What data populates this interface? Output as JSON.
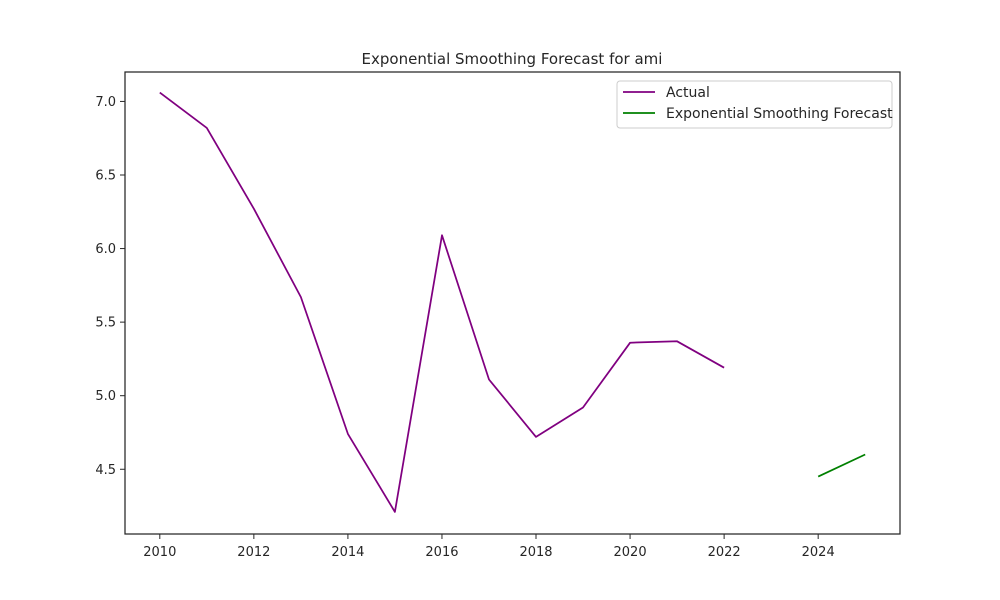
{
  "chart_data": {
    "type": "line",
    "title": "Exponential Smoothing Forecast for ami",
    "xlabel": "",
    "ylabel": "",
    "xlim": [
      2009.26,
      2025.74
    ],
    "ylim": [
      4.06,
      7.2
    ],
    "x_ticks": [
      2010,
      2012,
      2014,
      2016,
      2018,
      2020,
      2022,
      2024
    ],
    "x_tick_labels": [
      "2010",
      "2012",
      "2014",
      "2016",
      "2018",
      "2020",
      "2022",
      "2024"
    ],
    "y_ticks": [
      4.5,
      5.0,
      5.5,
      6.0,
      6.5,
      7.0
    ],
    "y_tick_labels": [
      "4.5",
      "5.0",
      "5.5",
      "6.0",
      "6.5",
      "7.0"
    ],
    "grid": false,
    "legend_position": "top-right",
    "series": [
      {
        "name": "Actual",
        "color": "#800080",
        "x": [
          2010,
          2011,
          2012,
          2013,
          2014,
          2015,
          2016,
          2017,
          2018,
          2019,
          2020,
          2021,
          2022
        ],
        "values": [
          7.06,
          6.82,
          6.27,
          5.67,
          4.74,
          4.21,
          6.09,
          5.11,
          4.72,
          4.92,
          5.36,
          5.37,
          5.19
        ]
      },
      {
        "name": "Exponential Smoothing Forecast",
        "color": "#008000",
        "x": [
          2024,
          2025
        ],
        "values": [
          4.45,
          4.6
        ]
      }
    ]
  }
}
